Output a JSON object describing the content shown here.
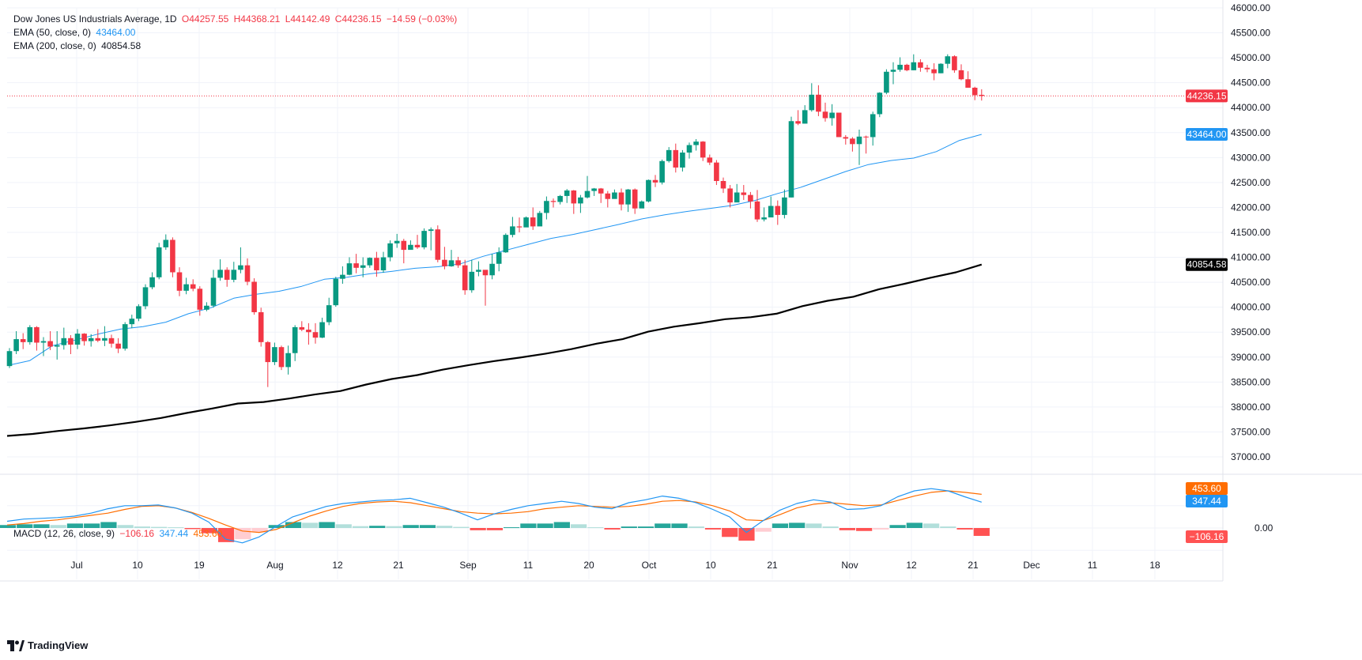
{
  "legend": {
    "symbol": "Dow Jones US Industrials Average, 1D",
    "open": "O44257.55",
    "high": "H44368.21",
    "low": "L44142.49",
    "close": "C44236.15",
    "change": "−14.59 (−0.03%)",
    "ema50_label": "EMA (50, close, 0)",
    "ema50_value": "43464.00",
    "ema200_label": "EMA (200, close, 0)",
    "ema200_value": "40854.58",
    "macd_label": "MACD (12, 26, close, 9)",
    "macd_hist": "−106.16",
    "macd_line": "347.44",
    "macd_signal": "453.60"
  },
  "badges": {
    "last_price": "44236.15",
    "ema50": "43464.00",
    "ema200": "40854.58",
    "macd_signal": "453.60",
    "macd_line": "347.44",
    "macd_zero": "0.00",
    "macd_hist": "−106.16"
  },
  "brand": "TradingView",
  "colors": {
    "up": "#089981",
    "down": "#f23645",
    "ema50": "#2196f3",
    "ema200": "#000000",
    "macd": "#2196f3",
    "signal": "#ff6d00",
    "hist_up_strong": "#26a69a",
    "hist_up_weak": "#b2dfdb",
    "hist_down_strong": "#ff5252",
    "hist_down_weak": "#ffcdd2"
  },
  "chart_data": [
    {
      "type": "candlestick",
      "title": "Dow Jones US Industrials Average, 1D",
      "x_axis_labels": [
        "Jul",
        "10",
        "19",
        "Aug",
        "12",
        "21",
        "Sep",
        "11",
        "20",
        "Oct",
        "10",
        "21",
        "Nov",
        "12",
        "21",
        "Dec",
        "11",
        "18"
      ],
      "y_axis_labels": [
        "46000.00",
        "45500.00",
        "45000.00",
        "44500.00",
        "44000.00",
        "43500.00",
        "43000.00",
        "42500.00",
        "42000.00",
        "41500.00",
        "41000.00",
        "40500.00",
        "40000.00",
        "39500.00",
        "39000.00",
        "38500.00",
        "38000.00",
        "37500.00",
        "37000.00"
      ],
      "ylim": [
        36800,
        46000
      ],
      "grid": true,
      "candles": [
        [
          38820,
          39120,
          39180,
          38780
        ],
        [
          39120,
          39360,
          39520,
          39060
        ],
        [
          39360,
          39300,
          39480,
          39160
        ],
        [
          39300,
          39600,
          39640,
          39250
        ],
        [
          39600,
          39290,
          39620,
          39130
        ],
        [
          39290,
          39320,
          39400,
          39020
        ],
        [
          39320,
          39210,
          39520,
          39140
        ],
        [
          39210,
          39240,
          39520,
          38950
        ],
        [
          39240,
          39380,
          39590,
          39150
        ],
        [
          39380,
          39250,
          39440,
          39060
        ],
        [
          39250,
          39470,
          39560,
          39160
        ],
        [
          39470,
          39320,
          39480,
          39230
        ],
        [
          39320,
          39380,
          39460,
          39210
        ],
        [
          39380,
          39330,
          39560,
          39300
        ],
        [
          39330,
          39380,
          39620,
          39220
        ],
        [
          39380,
          39270,
          39450,
          39190
        ],
        [
          39270,
          39170,
          39380,
          39080
        ],
        [
          39170,
          39660,
          39700,
          39130
        ],
        [
          39660,
          39770,
          39850,
          39580
        ],
        [
          39770,
          40020,
          40060,
          39720
        ],
        [
          40020,
          40400,
          40460,
          39960
        ],
        [
          40400,
          40600,
          40700,
          40360
        ],
        [
          40600,
          41200,
          41290,
          40560
        ],
        [
          41200,
          41350,
          41460,
          41150
        ],
        [
          41350,
          40700,
          41400,
          40600
        ],
        [
          40700,
          40330,
          40800,
          40220
        ],
        [
          40330,
          40460,
          40590,
          40260
        ],
        [
          40460,
          40370,
          40560,
          40320
        ],
        [
          40370,
          39950,
          40420,
          39830
        ],
        [
          39950,
          40030,
          40100,
          39920
        ],
        [
          40030,
          40590,
          40750,
          39990
        ],
        [
          40590,
          40750,
          40960,
          40530
        ],
        [
          40750,
          40550,
          40800,
          40410
        ],
        [
          40550,
          40750,
          40910,
          40500
        ],
        [
          40750,
          40840,
          41200,
          40680
        ],
        [
          40840,
          40510,
          40980,
          40440
        ],
        [
          40510,
          39900,
          40580,
          39850
        ],
        [
          39900,
          39300,
          39990,
          39210
        ],
        [
          39300,
          38900,
          39320,
          38400
        ],
        [
          38900,
          39200,
          39290,
          38840
        ],
        [
          39200,
          38800,
          39230,
          38740
        ],
        [
          38800,
          39080,
          39230,
          38650
        ],
        [
          39080,
          39600,
          39640,
          38920
        ],
        [
          39600,
          39550,
          39720,
          39520
        ],
        [
          39550,
          39500,
          39680,
          39250
        ],
        [
          39500,
          39390,
          39680,
          39270
        ],
        [
          39390,
          39700,
          39790,
          39380
        ],
        [
          39700,
          40040,
          40190,
          39640
        ],
        [
          40040,
          40570,
          40610,
          40010
        ],
        [
          40570,
          40650,
          40820,
          40470
        ],
        [
          40650,
          40880,
          41000,
          40640
        ],
        [
          40880,
          40790,
          41070,
          40680
        ],
        [
          40790,
          40840,
          41000,
          40600
        ],
        [
          40840,
          40990,
          41000,
          40790
        ],
        [
          40990,
          40740,
          41110,
          40610
        ],
        [
          40740,
          41000,
          41110,
          40690
        ],
        [
          41000,
          41280,
          41340,
          40920
        ],
        [
          41280,
          41330,
          41470,
          41190
        ],
        [
          41330,
          41150,
          41370,
          40880
        ],
        [
          41150,
          41250,
          41340,
          41190
        ],
        [
          41250,
          41200,
          41450,
          41170
        ],
        [
          41200,
          41530,
          41580,
          41160
        ],
        [
          41530,
          41560,
          41600,
          41140
        ],
        [
          41560,
          40950,
          41640,
          40900
        ],
        [
          40950,
          40820,
          41210,
          40760
        ],
        [
          40820,
          40940,
          41150,
          40810
        ],
        [
          40940,
          40840,
          41010,
          40790
        ],
        [
          40840,
          40340,
          40950,
          40250
        ],
        [
          40340,
          40710,
          40950,
          40290
        ],
        [
          40710,
          40750,
          40920,
          40620
        ],
        [
          40750,
          40640,
          40720,
          40030
        ],
        [
          40640,
          40870,
          41070,
          40560
        ],
        [
          40870,
          41100,
          41200,
          40720
        ],
        [
          41100,
          41450,
          41480,
          41090
        ],
        [
          41450,
          41620,
          41810,
          41400
        ],
        [
          41620,
          41600,
          41800,
          41500
        ],
        [
          41600,
          41800,
          41820,
          41700
        ],
        [
          41800,
          41620,
          42000,
          41550
        ],
        [
          41620,
          41890,
          41930,
          41640
        ],
        [
          41890,
          42130,
          42220,
          41760
        ],
        [
          42130,
          42110,
          42180,
          42000
        ],
        [
          42110,
          42230,
          42250,
          42060
        ],
        [
          42230,
          42340,
          42370,
          42090
        ],
        [
          42340,
          42080,
          42350,
          41870
        ],
        [
          42080,
          42200,
          42250,
          41890
        ],
        [
          42200,
          42330,
          42630,
          42180
        ],
        [
          42330,
          42380,
          42390,
          42230
        ],
        [
          42380,
          42280,
          42390,
          42090
        ],
        [
          42280,
          42170,
          42330,
          42000
        ],
        [
          42170,
          42300,
          42360,
          42230
        ],
        [
          42300,
          42060,
          42380,
          41940
        ],
        [
          42060,
          42360,
          42370,
          41910
        ],
        [
          42360,
          41980,
          42380,
          41870
        ],
        [
          41980,
          42120,
          42140,
          41990
        ],
        [
          42120,
          42550,
          42560,
          42100
        ],
        [
          42550,
          42500,
          42650,
          42410
        ],
        [
          42500,
          42930,
          42960,
          42460
        ],
        [
          42930,
          43150,
          43210,
          42900
        ],
        [
          43150,
          42800,
          43280,
          42700
        ],
        [
          42800,
          43100,
          43150,
          42720
        ],
        [
          43100,
          43250,
          43300,
          42980
        ],
        [
          43250,
          43320,
          43370,
          43140
        ],
        [
          43320,
          43000,
          43330,
          42930
        ],
        [
          43000,
          42900,
          43060,
          42850
        ],
        [
          42900,
          42530,
          42950,
          42450
        ],
        [
          42530,
          42380,
          42600,
          42290
        ],
        [
          42380,
          42100,
          42450,
          42000
        ],
        [
          42100,
          42300,
          42470,
          42130
        ],
        [
          42300,
          42250,
          42450,
          42150
        ],
        [
          42250,
          42120,
          42310,
          41980
        ],
        [
          42120,
          41760,
          42350,
          41710
        ],
        [
          41760,
          41800,
          42000,
          41720
        ],
        [
          41800,
          42030,
          42220,
          41950
        ],
        [
          42030,
          41850,
          42140,
          41650
        ],
        [
          41850,
          42200,
          42360,
          41780
        ],
        [
          42200,
          43730,
          43820,
          42200
        ],
        [
          43730,
          43680,
          43950,
          43650
        ],
        [
          43680,
          43950,
          44050,
          43680
        ],
        [
          43950,
          44260,
          44490,
          43920
        ],
        [
          44260,
          43920,
          44450,
          43830
        ],
        [
          43920,
          43790,
          44100,
          43720
        ],
        [
          43790,
          43900,
          44070,
          43640
        ],
        [
          43900,
          43410,
          43850,
          43410
        ],
        [
          43410,
          43380,
          43450,
          43260
        ],
        [
          43380,
          43270,
          43410,
          43120
        ],
        [
          43270,
          43420,
          43560,
          42850
        ],
        [
          43420,
          43410,
          43440,
          43080
        ],
        [
          43410,
          43870,
          43920,
          43240
        ],
        [
          43870,
          44300,
          44310,
          43810
        ],
        [
          44300,
          44720,
          44770,
          44270
        ],
        [
          44720,
          44760,
          44910,
          44470
        ],
        [
          44760,
          44860,
          45010,
          44720
        ],
        [
          44860,
          44750,
          44880,
          44730
        ],
        [
          44750,
          44910,
          45070,
          44750
        ],
        [
          44910,
          44800,
          44970,
          44720
        ],
        [
          44800,
          44770,
          44860,
          44710
        ],
        [
          44770,
          44690,
          44890,
          44550
        ],
        [
          44690,
          44880,
          44890,
          44690
        ],
        [
          44880,
          45030,
          45070,
          44790
        ],
        [
          45030,
          44750,
          45050,
          44700
        ],
        [
          44750,
          44570,
          44870,
          44550
        ],
        [
          44570,
          44400,
          44730,
          44400
        ],
        [
          44400,
          44250,
          44420,
          44150
        ],
        [
          44257.55,
          44236.15,
          44368.21,
          44142.49
        ]
      ],
      "ema50_line": [
        38830,
        38930,
        39230,
        39340,
        39460,
        39560,
        39610,
        39700,
        39870,
        39990,
        40180,
        40260,
        40320,
        40420,
        40560,
        40600,
        40670,
        40720,
        40780,
        40810,
        40870,
        41020,
        41140,
        41260,
        41380,
        41460,
        41560,
        41660,
        41770,
        41850,
        41920,
        41980,
        42040,
        42140,
        42280,
        42400,
        42560,
        42720,
        42860,
        42940,
        42990,
        43120,
        43340,
        43464
      ],
      "ema200_line": [
        37420,
        37460,
        37520,
        37570,
        37630,
        37700,
        37780,
        37880,
        37970,
        38070,
        38100,
        38170,
        38250,
        38320,
        38450,
        38560,
        38640,
        38750,
        38840,
        38920,
        38990,
        39070,
        39160,
        39270,
        39360,
        39510,
        39610,
        39680,
        39760,
        39800,
        39870,
        40020,
        40130,
        40210,
        40360,
        40470,
        40590,
        40700,
        40854.58
      ]
    },
    {
      "type": "macd",
      "title": "MACD (12, 26, close, 9)",
      "y_axis_labels": [
        "0.00"
      ],
      "macd_line": [
        90,
        120,
        130,
        140,
        160,
        200,
        260,
        300,
        300,
        310,
        270,
        200,
        80,
        -150,
        -200,
        -120,
        20,
        150,
        220,
        290,
        330,
        350,
        370,
        380,
        400,
        340,
        280,
        200,
        110,
        190,
        250,
        300,
        330,
        360,
        330,
        280,
        260,
        340,
        380,
        430,
        400,
        340,
        250,
        150,
        -60,
        100,
        240,
        330,
        380,
        350,
        250,
        260,
        300,
        420,
        500,
        530,
        500,
        420,
        347.44
      ],
      "signal_line": [
        40,
        60,
        90,
        110,
        140,
        170,
        200,
        250,
        290,
        300,
        270,
        210,
        130,
        40,
        -40,
        -60,
        -20,
        70,
        160,
        230,
        290,
        330,
        350,
        360,
        340,
        300,
        260,
        220,
        200,
        190,
        200,
        220,
        260,
        280,
        300,
        290,
        280,
        290,
        320,
        360,
        370,
        350,
        300,
        230,
        110,
        100,
        180,
        270,
        320,
        340,
        320,
        300,
        310,
        370,
        430,
        480,
        500,
        480,
        453.6
      ],
      "histogram": [
        40,
        50,
        50,
        40,
        60,
        60,
        80,
        40,
        20,
        15,
        10,
        -15,
        -70,
        -190,
        -150,
        -60,
        40,
        80,
        70,
        80,
        50,
        25,
        30,
        25,
        40,
        40,
        30,
        15,
        -30,
        -30,
        10,
        60,
        60,
        80,
        50,
        10,
        -20,
        20,
        20,
        60,
        60,
        20,
        -20,
        -120,
        -170,
        -50,
        60,
        70,
        60,
        20,
        -30,
        -40,
        -20,
        40,
        70,
        60,
        20,
        -20,
        -106.16
      ]
    }
  ]
}
